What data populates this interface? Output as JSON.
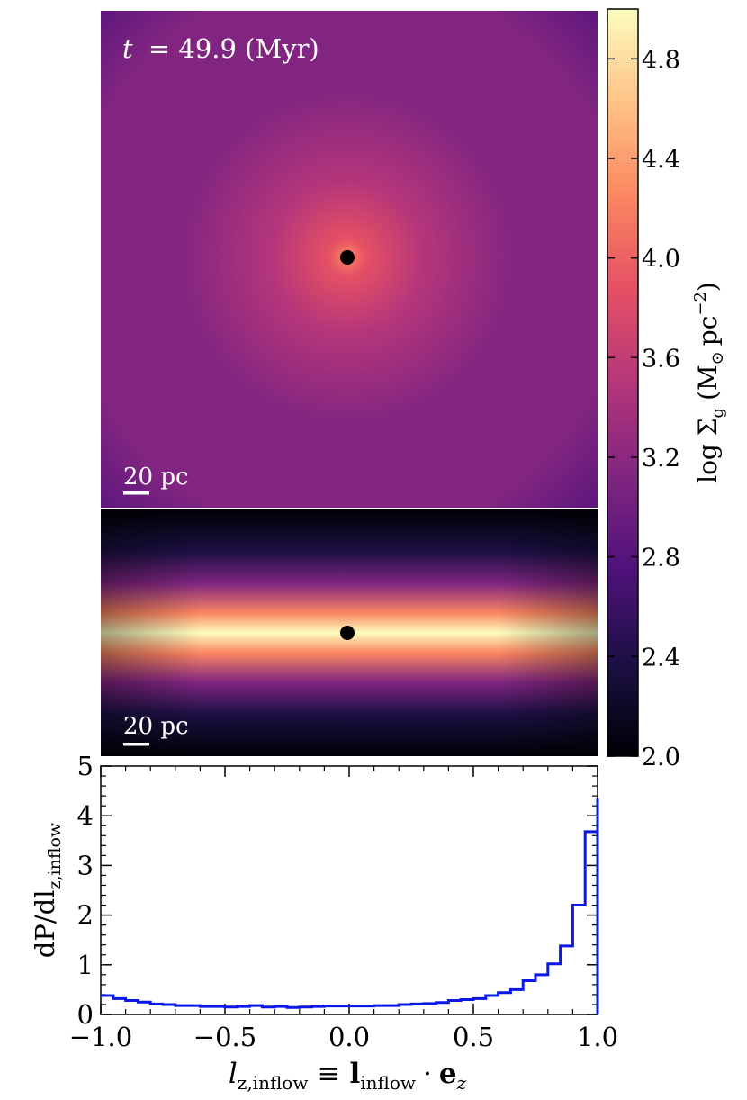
{
  "colors": {
    "histogram_line": "#0b18e8",
    "marker": "#000000",
    "scale_bar": "#ffffff",
    "colormap": [
      "#000004",
      "#1c1044",
      "#4f127b",
      "#812581",
      "#b5367a",
      "#e55064",
      "#fb8761",
      "#fec287",
      "#fcfdbf"
    ]
  },
  "top_panel": {
    "time_label_t": "t",
    "time_label_rest": "= 49.9 (Myr)",
    "scale_bar_label": "20 pc"
  },
  "side_panel": {
    "scale_bar_label": "20 pc"
  },
  "colorbar": {
    "label": "log Σ",
    "label_sub": "g",
    "label_units": "(M",
    "label_units_sub": "⊙",
    "label_units_rest": "pc",
    "label_units_sup": "−2",
    "label_close": ")",
    "range": [
      2.0,
      5.0
    ],
    "ticks": [
      "2.0",
      "2.4",
      "2.8",
      "3.2",
      "3.6",
      "4.0",
      "4.4",
      "4.8"
    ]
  },
  "chart_data": {
    "type": "line",
    "style": "step histogram",
    "xlabel_l": "l",
    "xlabel_sub": "z,inflow",
    "xlabel_equiv": "≡",
    "xlabel_bold": "l",
    "xlabel_bold_sub": "inflow",
    "xlabel_dot": "·",
    "xlabel_e": "e",
    "xlabel_e_sub": "z",
    "ylabel_main": "dP/dl",
    "ylabel_sub": "z,inflow",
    "xlim": [
      -1.0,
      1.0
    ],
    "ylim": [
      0,
      5
    ],
    "xticks": [
      "−1.0",
      "−0.5",
      "0.0",
      "0.5",
      "1.0"
    ],
    "yticks": [
      "0",
      "1",
      "2",
      "3",
      "4",
      "5"
    ],
    "bin_edges": [
      -1.0,
      -0.95,
      -0.9,
      -0.85,
      -0.8,
      -0.75,
      -0.7,
      -0.65,
      -0.6,
      -0.55,
      -0.5,
      -0.45,
      -0.4,
      -0.35,
      -0.3,
      -0.25,
      -0.2,
      -0.15,
      -0.1,
      -0.05,
      0.0,
      0.05,
      0.1,
      0.15,
      0.2,
      0.25,
      0.3,
      0.35,
      0.4,
      0.45,
      0.5,
      0.55,
      0.6,
      0.65,
      0.7,
      0.75,
      0.8,
      0.85,
      0.9,
      0.95,
      1.0
    ],
    "values": [
      0.38,
      0.32,
      0.28,
      0.25,
      0.21,
      0.2,
      0.18,
      0.18,
      0.16,
      0.16,
      0.15,
      0.16,
      0.18,
      0.15,
      0.16,
      0.14,
      0.15,
      0.16,
      0.17,
      0.17,
      0.17,
      0.17,
      0.18,
      0.18,
      0.2,
      0.21,
      0.22,
      0.24,
      0.28,
      0.3,
      0.32,
      0.38,
      0.44,
      0.5,
      0.68,
      0.8,
      1.02,
      1.38,
      2.2,
      3.68,
      4.35
    ]
  }
}
